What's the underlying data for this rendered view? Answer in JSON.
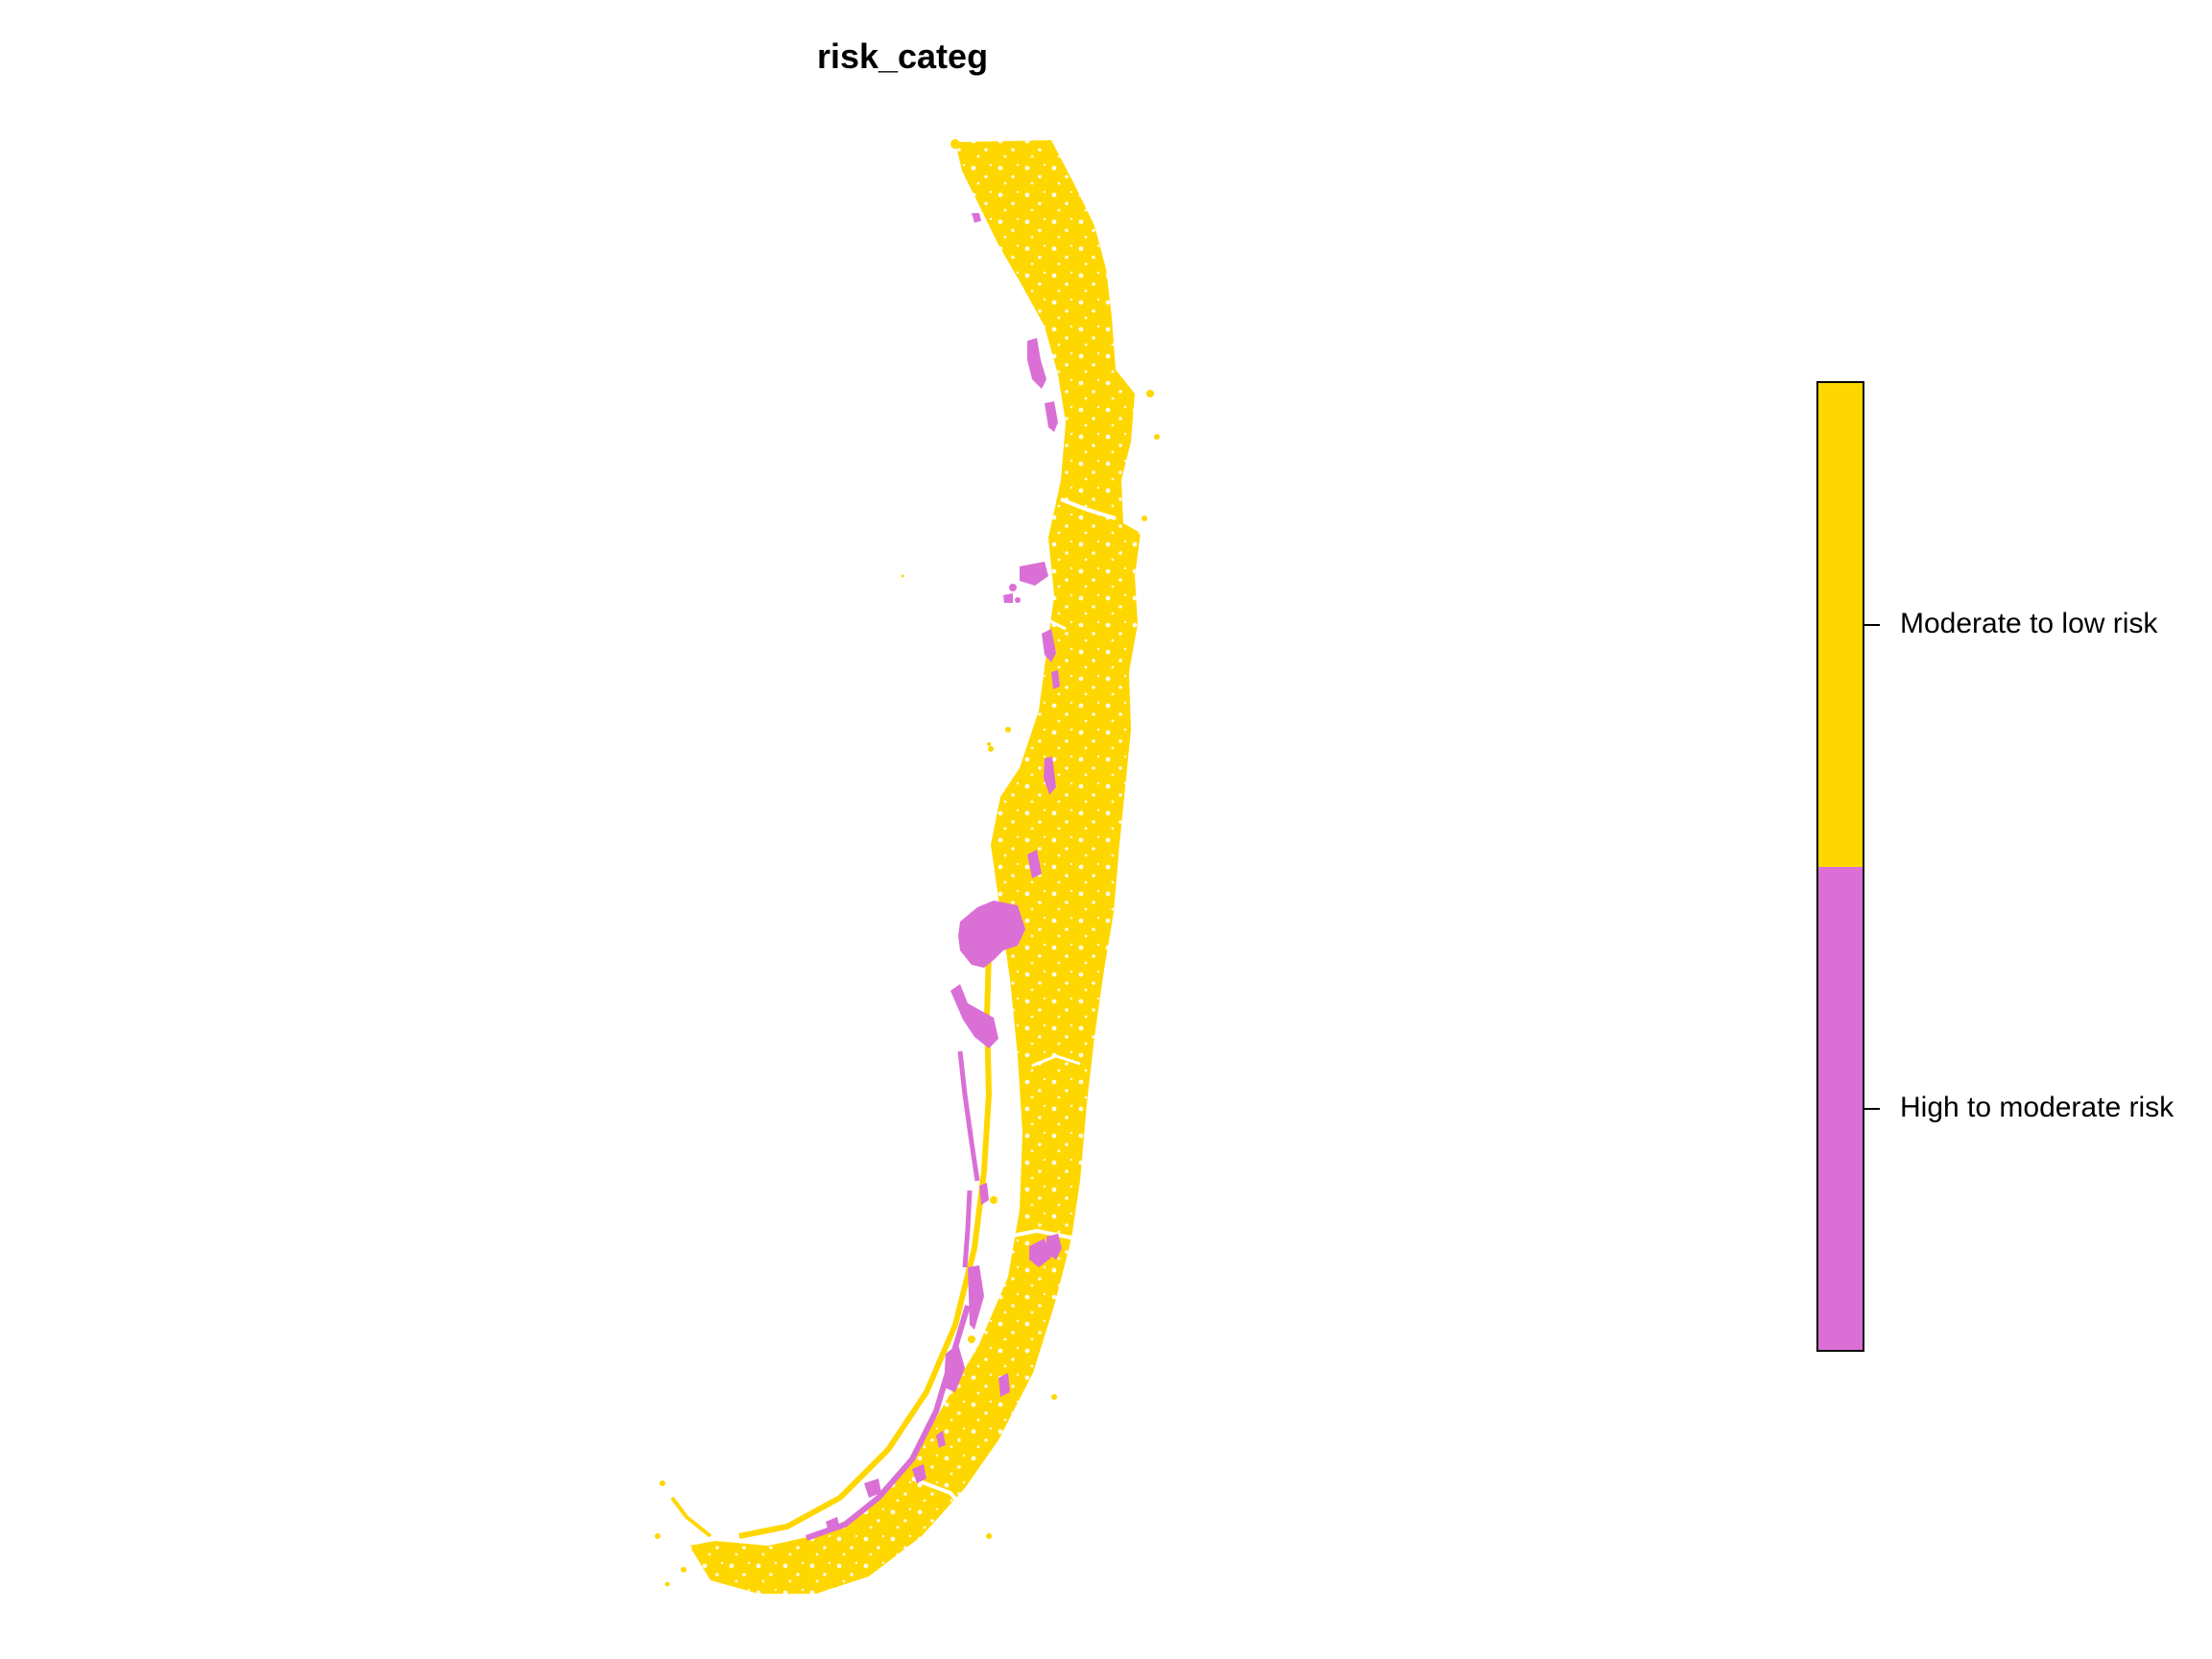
{
  "map": {
    "title": "risk_categ"
  },
  "legend": {
    "items": [
      {
        "label": "Moderate to low risk",
        "color": "#FFD700"
      },
      {
        "label": "High to moderate risk",
        "color": "#DA70D6"
      }
    ]
  }
}
